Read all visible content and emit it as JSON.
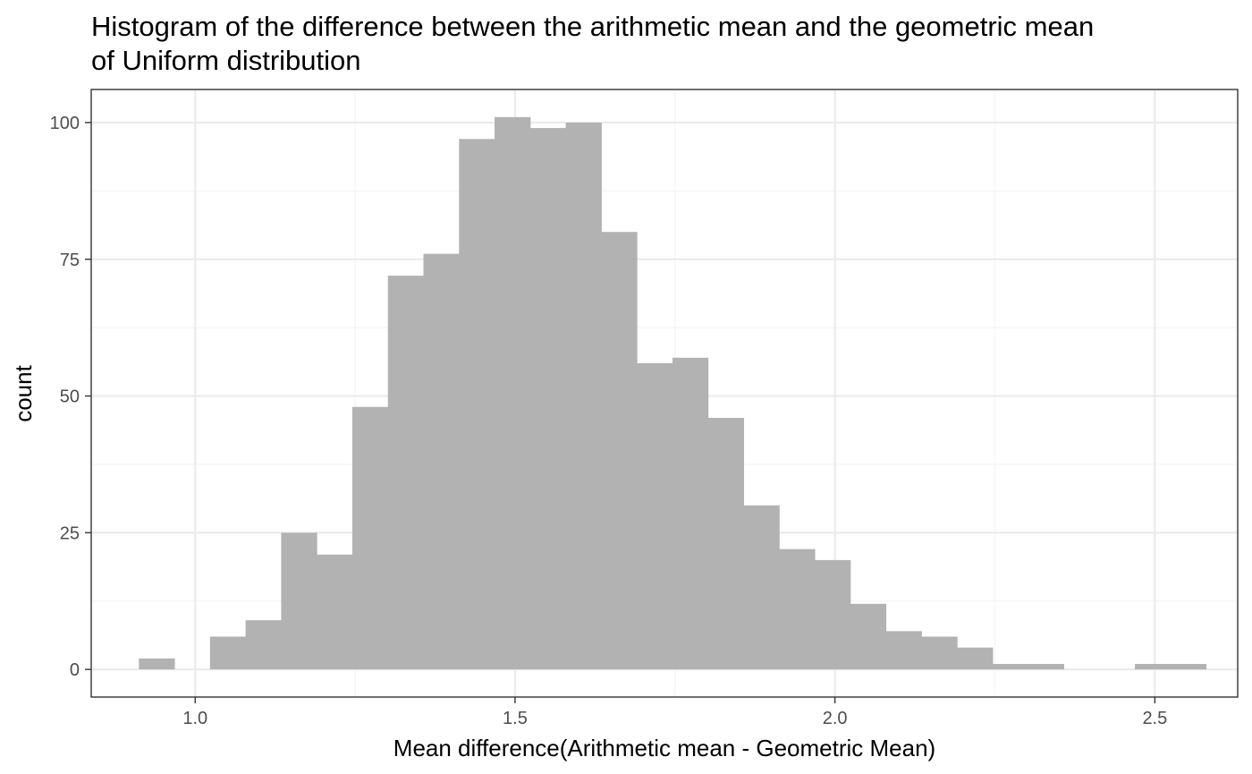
{
  "chart_data": {
    "type": "bar",
    "title_lines": [
      "Histogram of the difference between the arithmetic mean and the geometric mean",
      "of Uniform distribution"
    ],
    "xlabel": "Mean difference(Arithmetic mean - Geometric Mean)",
    "ylabel": "count",
    "xlim": [
      0.8375,
      2.6295
    ],
    "ylim": [
      -5.05,
      106.05
    ],
    "x_ticks": [
      1.0,
      1.5,
      2.0,
      2.5
    ],
    "x_tick_labels": [
      "1.0",
      "1.5",
      "2.0",
      "2.5"
    ],
    "y_ticks": [
      0,
      25,
      50,
      75,
      100
    ],
    "y_tick_labels": [
      "0",
      "25",
      "50",
      "75",
      "100"
    ],
    "grid": true,
    "bin_width": 0.0556,
    "bin_starts": [
      0.912,
      0.9676,
      1.0232,
      1.0788,
      1.1344,
      1.19,
      1.2456,
      1.3012,
      1.3568,
      1.4124,
      1.468,
      1.5236,
      1.5792,
      1.6348,
      1.6904,
      1.746,
      1.8016,
      1.8572,
      1.9128,
      1.9684,
      2.024,
      2.0796,
      2.1352,
      2.1908,
      2.2464,
      2.302,
      2.3576,
      2.4132,
      2.4688,
      2.5244
    ],
    "counts": [
      2,
      0,
      6,
      9,
      25,
      21,
      48,
      72,
      76,
      97,
      101,
      99,
      100,
      80,
      56,
      57,
      46,
      30,
      22,
      20,
      12,
      7,
      6,
      4,
      1,
      1,
      0,
      0,
      1,
      1
    ],
    "colors": {
      "bar": "#b2b2b2",
      "grid_major": "#ebebeb",
      "grid_minor": "#f5f5f5",
      "panel_border": "#333333",
      "tick": "#333333",
      "tick_label": "#4d4d4d"
    }
  }
}
